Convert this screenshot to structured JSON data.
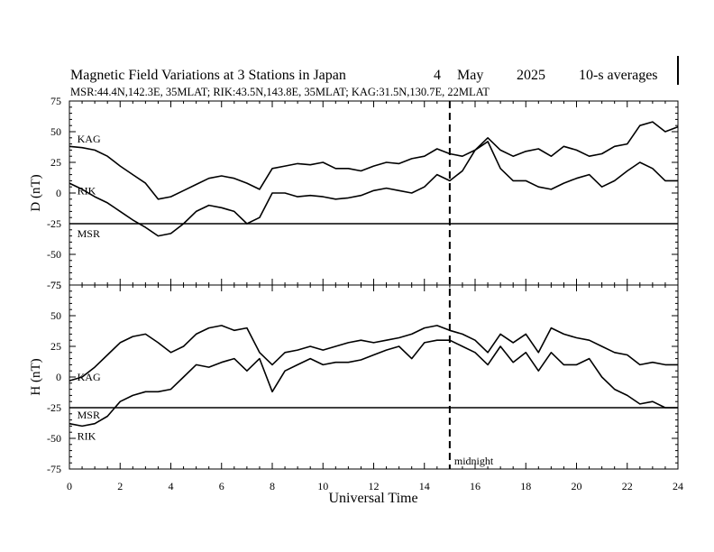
{
  "chart_data": {
    "type": "line",
    "title": "Magnetic Field Variations at 3 Stations in Japan",
    "day": "4",
    "month": "May",
    "year": "2025",
    "averaging": "10-s averages",
    "subtitle": "MSR:44.4N,142.3E, 35MLAT;  RIK:43.5N,143.8E, 35MLAT;  KAG:31.5N,130.7E, 22MLAT",
    "xlabel": "Universal Time",
    "xlim": [
      0,
      24
    ],
    "xticks": [
      "0",
      "2",
      "4",
      "6",
      "8",
      "10",
      "12",
      "14",
      "16",
      "18",
      "20",
      "22",
      "24"
    ],
    "annotation": {
      "x": 15,
      "label": "midnight"
    },
    "panels": [
      {
        "name": "D",
        "ylabel": "D (nT)",
        "ylim": [
          -75,
          75
        ],
        "yticks": [
          "75",
          "50",
          "25",
          "0",
          "-25",
          "-50",
          "-75"
        ],
        "series": [
          {
            "name": "KAG",
            "label_at": [
              0.2,
              44
            ],
            "x": [
              0,
              0.5,
              1,
              1.5,
              2,
              2.5,
              3,
              3.5,
              4,
              4.5,
              5,
              5.5,
              6,
              6.5,
              7,
              7.5,
              8,
              8.5,
              9,
              9.5,
              10,
              10.5,
              11,
              11.5,
              12,
              12.5,
              13,
              13.5,
              14,
              14.5,
              15,
              15.5,
              16,
              16.5,
              17,
              17.5,
              18,
              18.5,
              19,
              19.5,
              20,
              20.5,
              21,
              21.5,
              22,
              22.5,
              23,
              23.5,
              24
            ],
            "y": [
              38,
              37,
              35,
              30,
              22,
              15,
              8,
              -5,
              -3,
              2,
              7,
              12,
              14,
              12,
              8,
              3,
              20,
              22,
              24,
              23,
              25,
              20,
              20,
              18,
              22,
              25,
              24,
              28,
              30,
              36,
              32,
              30,
              35,
              45,
              35,
              30,
              34,
              36,
              30,
              38,
              35,
              30,
              32,
              38,
              40,
              55,
              58,
              50,
              54
            ]
          },
          {
            "name": "RIK",
            "label_at": [
              0.2,
              2
            ],
            "x": [
              0,
              0.5,
              1,
              1.5,
              2,
              2.5,
              3,
              3.5,
              4,
              4.5,
              5,
              5.5,
              6,
              6.5,
              7,
              7.5,
              8,
              8.5,
              9,
              9.5,
              10,
              10.5,
              11,
              11.5,
              12,
              12.5,
              13,
              13.5,
              14,
              14.5,
              15,
              15.5,
              16,
              16.5,
              17,
              17.5,
              18,
              18.5,
              19,
              19.5,
              20,
              20.5,
              21,
              21.5,
              22,
              22.5,
              23,
              23.5,
              24
            ],
            "y": [
              8,
              3,
              -3,
              -8,
              -15,
              -22,
              -28,
              -35,
              -33,
              -25,
              -15,
              -10,
              -12,
              -15,
              -25,
              -20,
              0,
              0,
              -3,
              -2,
              -3,
              -5,
              -4,
              -2,
              2,
              4,
              2,
              0,
              5,
              15,
              10,
              18,
              35,
              42,
              20,
              10,
              10,
              5,
              3,
              8,
              12,
              15,
              5,
              10,
              18,
              25,
              20,
              10,
              10
            ]
          },
          {
            "name": "MSR",
            "label_at": [
              0.2,
              -33
            ],
            "x": [
              0,
              24
            ],
            "y": [
              -25,
              -25
            ]
          }
        ]
      },
      {
        "name": "H",
        "ylabel": "H (nT)",
        "ylim": [
          -75,
          75
        ],
        "yticks": [
          "75",
          "50",
          "25",
          "0",
          "-25",
          "-50",
          "-75"
        ],
        "series": [
          {
            "name": "KAG",
            "label_at": [
              0.2,
              0
            ],
            "x": [
              0,
              0.5,
              1,
              1.5,
              2,
              2.5,
              3,
              3.5,
              4,
              4.5,
              5,
              5.5,
              6,
              6.5,
              7,
              7.5,
              8,
              8.5,
              9,
              9.5,
              10,
              10.5,
              11,
              11.5,
              12,
              12.5,
              13,
              13.5,
              14,
              14.5,
              15,
              15.5,
              16,
              16.5,
              17,
              17.5,
              18,
              18.5,
              19,
              19.5,
              20,
              20.5,
              21,
              21.5,
              22,
              22.5,
              23,
              23.5,
              24
            ],
            "y": [
              -3,
              0,
              8,
              18,
              28,
              33,
              35,
              28,
              20,
              25,
              35,
              40,
              42,
              38,
              40,
              20,
              10,
              20,
              22,
              25,
              22,
              25,
              28,
              30,
              28,
              30,
              32,
              35,
              40,
              42,
              38,
              35,
              30,
              20,
              35,
              28,
              35,
              20,
              40,
              35,
              32,
              30,
              25,
              20,
              18,
              10,
              12,
              10,
              10
            ]
          },
          {
            "name": "RIK",
            "label_at": [
              0.2,
              -48
            ],
            "x": [
              0,
              0.5,
              1,
              1.5,
              2,
              2.5,
              3,
              3.5,
              4,
              4.5,
              5,
              5.5,
              6,
              6.5,
              7,
              7.5,
              8,
              8.5,
              9,
              9.5,
              10,
              10.5,
              11,
              11.5,
              12,
              12.5,
              13,
              13.5,
              14,
              14.5,
              15,
              15.5,
              16,
              16.5,
              17,
              17.5,
              18,
              18.5,
              19,
              19.5,
              20,
              20.5,
              21,
              21.5,
              22,
              22.5,
              23,
              23.5,
              24
            ],
            "y": [
              -38,
              -40,
              -38,
              -32,
              -20,
              -15,
              -12,
              -12,
              -10,
              0,
              10,
              8,
              12,
              15,
              5,
              15,
              -12,
              5,
              10,
              15,
              10,
              12,
              12,
              14,
              18,
              22,
              25,
              15,
              28,
              30,
              30,
              25,
              20,
              10,
              25,
              12,
              20,
              5,
              20,
              10,
              10,
              15,
              0,
              -10,
              -15,
              -22,
              -20,
              -25,
              -25
            ]
          },
          {
            "name": "MSR",
            "label_at": [
              0.2,
              -31
            ],
            "x": [
              0,
              24
            ],
            "y": [
              -25,
              -25
            ]
          }
        ]
      }
    ]
  }
}
